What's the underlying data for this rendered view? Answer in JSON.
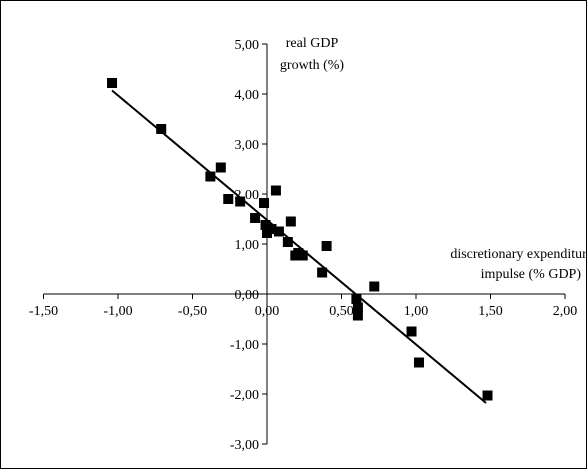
{
  "chart_data": {
    "type": "scatter",
    "xlabel": [
      "discretionary expenditure",
      "impulse (% GDP)"
    ],
    "ylabel": [
      "real GDP",
      "growth (%)"
    ],
    "xlim": [
      -1.5,
      2.0
    ],
    "ylim": [
      -3.0,
      5.0
    ],
    "x_ticks": [
      -1.5,
      -1.0,
      -0.5,
      0.0,
      0.5,
      1.0,
      1.5,
      2.0
    ],
    "x_tick_labels": [
      "-1,50",
      "-1,00",
      "-0,50",
      "0,00",
      "0,50",
      "1,00",
      "1,50",
      "2,00"
    ],
    "y_ticks": [
      -3.0,
      -2.0,
      -1.0,
      0.0,
      1.0,
      2.0,
      3.0,
      4.0,
      5.0
    ],
    "y_tick_labels": [
      "-3,00",
      "-2,00",
      "-1,00",
      "0,00",
      "1,00",
      "2,00",
      "3,00",
      "4,00",
      "5,00"
    ],
    "grid": false,
    "legend": "none",
    "marker": "square",
    "marker_color": "#000000",
    "points": [
      {
        "x": -1.04,
        "y": 4.22
      },
      {
        "x": -0.71,
        "y": 3.3
      },
      {
        "x": -0.38,
        "y": 2.35
      },
      {
        "x": -0.31,
        "y": 2.53
      },
      {
        "x": -0.26,
        "y": 1.9
      },
      {
        "x": -0.18,
        "y": 1.85
      },
      {
        "x": -0.08,
        "y": 1.52
      },
      {
        "x": -0.02,
        "y": 1.82
      },
      {
        "x": -0.01,
        "y": 1.38
      },
      {
        "x": 0.0,
        "y": 1.22
      },
      {
        "x": 0.03,
        "y": 1.3
      },
      {
        "x": 0.06,
        "y": 2.07
      },
      {
        "x": 0.08,
        "y": 1.25
      },
      {
        "x": 0.14,
        "y": 1.04
      },
      {
        "x": 0.16,
        "y": 1.45
      },
      {
        "x": 0.19,
        "y": 0.77
      },
      {
        "x": 0.21,
        "y": 0.82
      },
      {
        "x": 0.24,
        "y": 0.77
      },
      {
        "x": 0.37,
        "y": 0.43
      },
      {
        "x": 0.4,
        "y": 0.96
      },
      {
        "x": 0.6,
        "y": -0.1
      },
      {
        "x": 0.61,
        "y": -0.27
      },
      {
        "x": 0.61,
        "y": -0.43
      },
      {
        "x": 0.72,
        "y": 0.15
      },
      {
        "x": 0.97,
        "y": -0.75
      },
      {
        "x": 1.02,
        "y": -1.37
      },
      {
        "x": 1.48,
        "y": -2.03
      }
    ],
    "trendline": {
      "x": [
        -1.04,
        1.47
      ],
      "y": [
        4.07,
        -2.18
      ],
      "color": "#000000"
    }
  }
}
